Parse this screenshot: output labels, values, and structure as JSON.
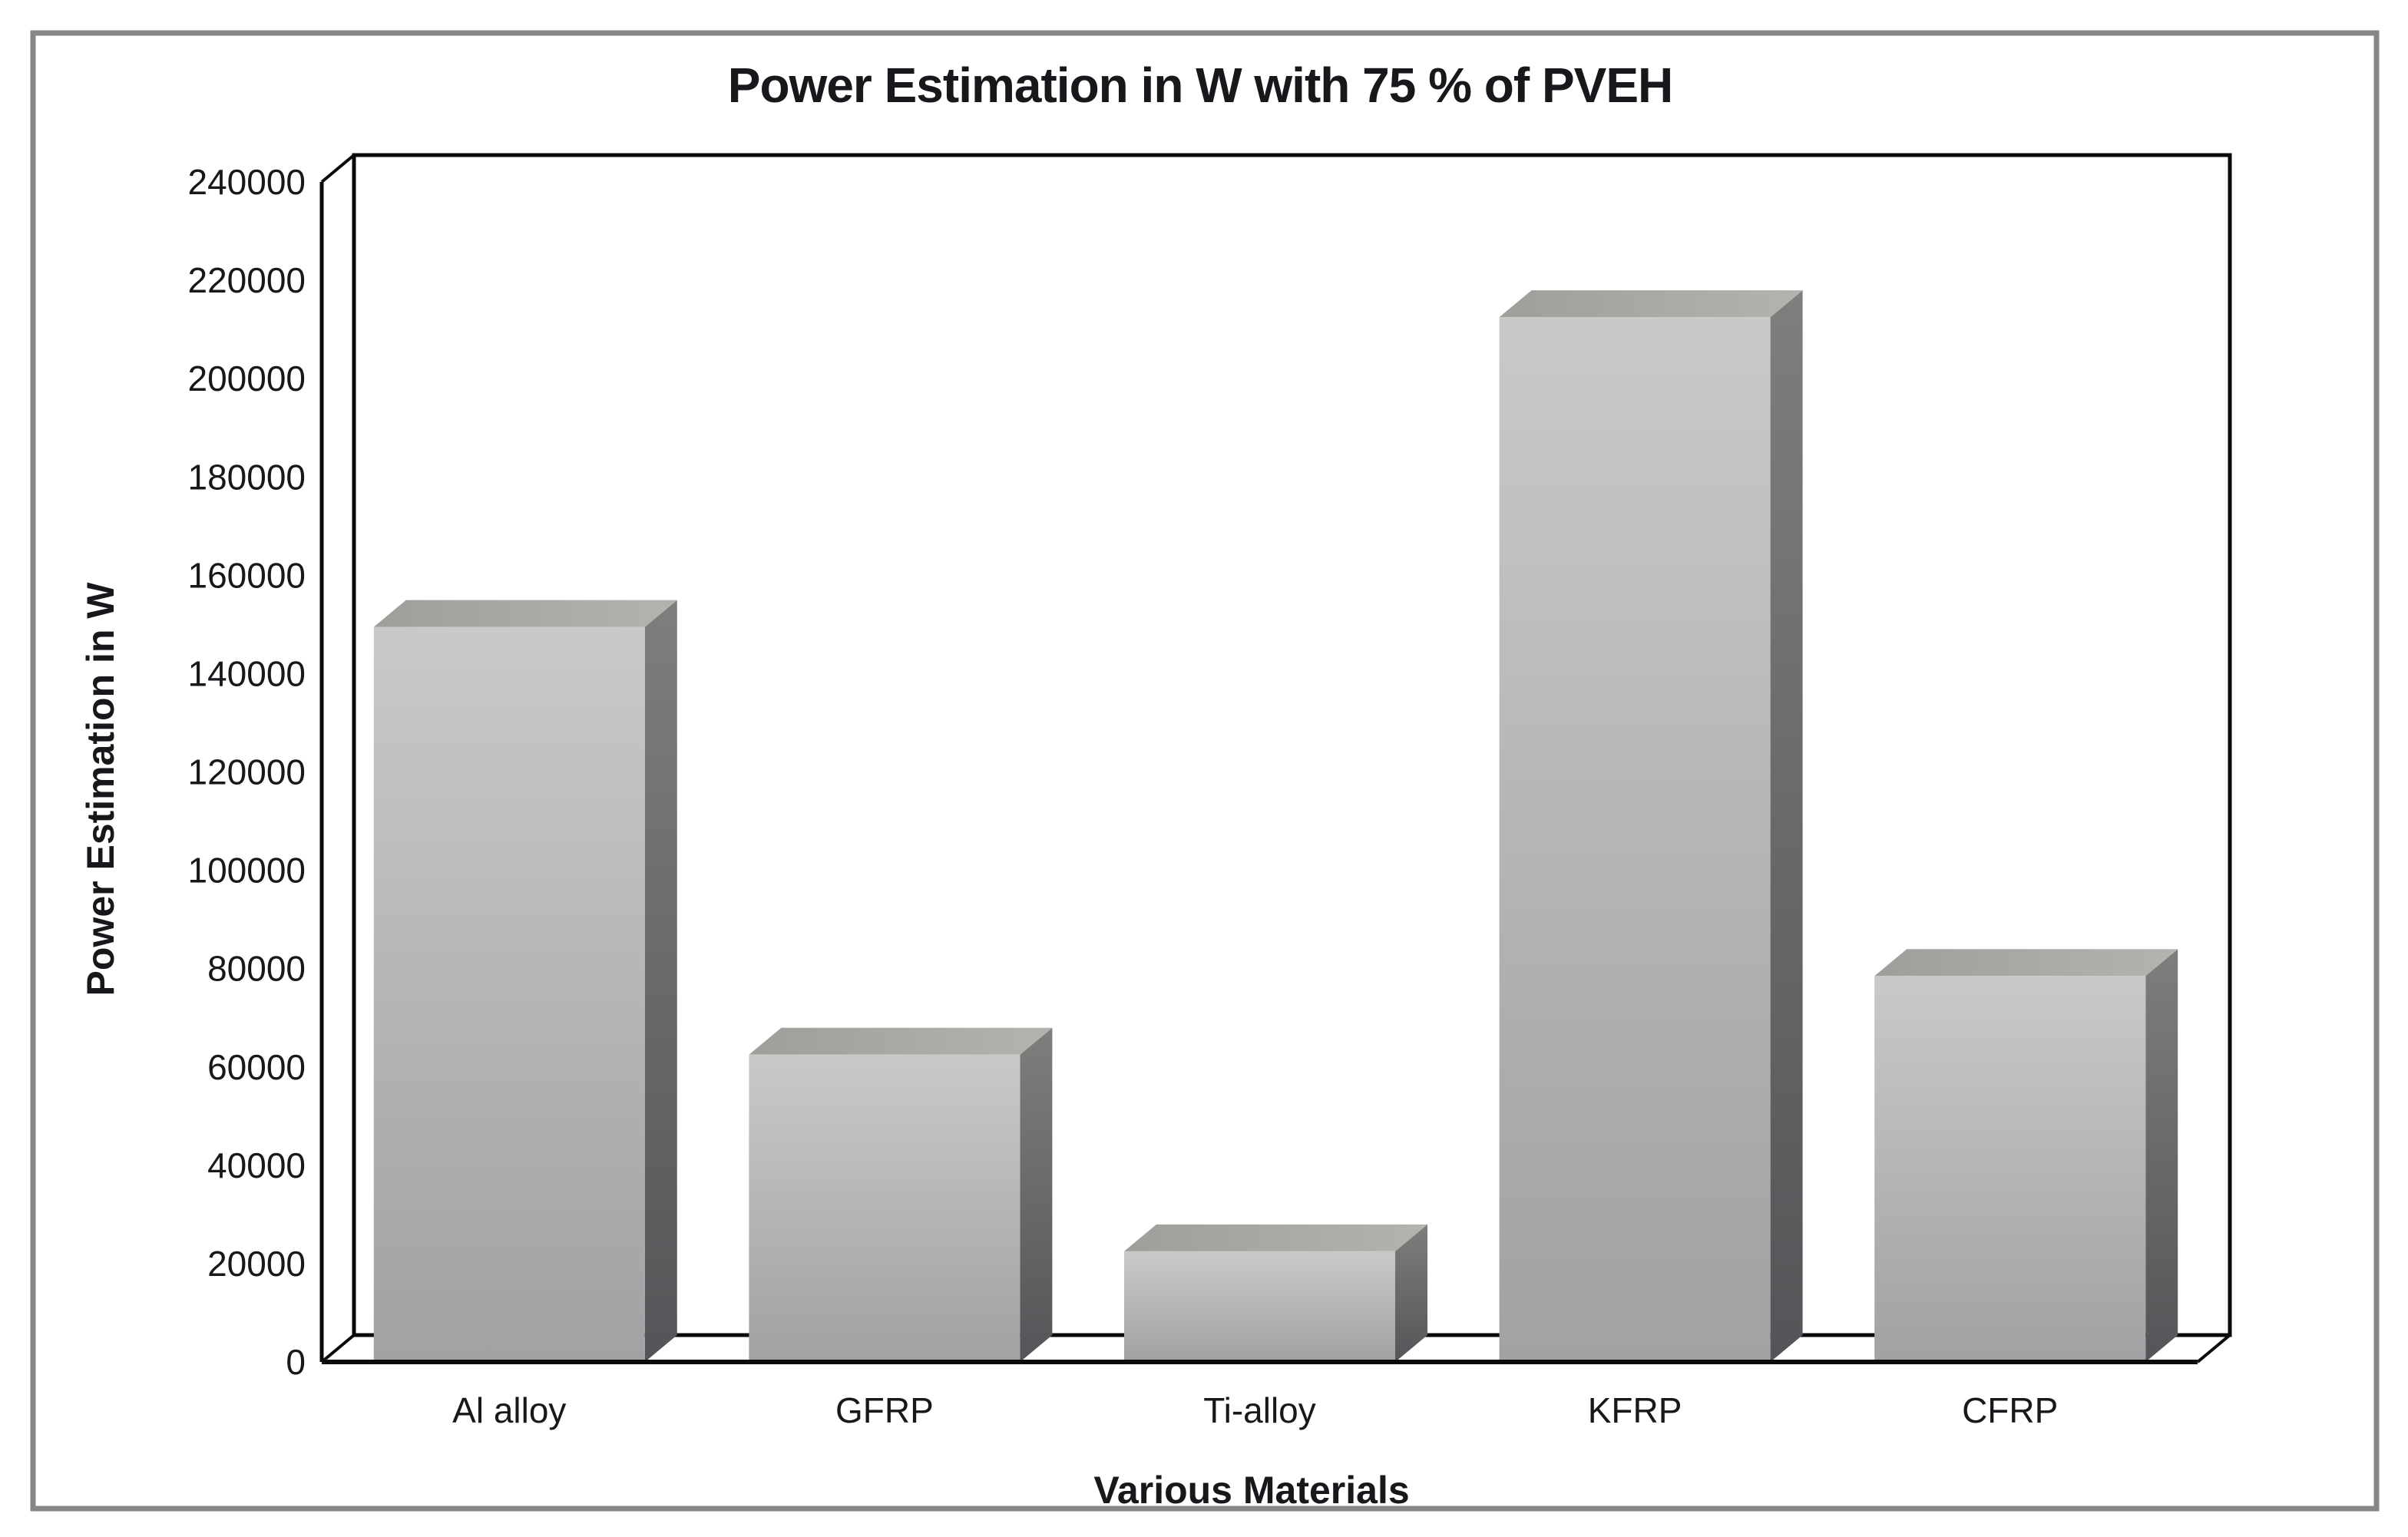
{
  "chart_data": {
    "type": "bar",
    "title": "Power Estimation in W with 75 % of PVEH",
    "xlabel": "Various Materials",
    "ylabel": "Power Estimation in W",
    "categories": [
      "Al alloy",
      "GFRP",
      "Ti-alloy",
      "KFRP",
      "CFRP"
    ],
    "values": [
      149500,
      62500,
      22500,
      212500,
      78500
    ],
    "ylim": [
      0,
      240000
    ],
    "ytick_step": 20000,
    "ytick_labels": [
      "0",
      "20000",
      "40000",
      "60000",
      "80000",
      "100000",
      "120000",
      "140000",
      "160000",
      "180000",
      "200000",
      "220000",
      "240000"
    ],
    "grid": false,
    "legend": "none",
    "effect": "3d-column"
  },
  "colors": {
    "background": "#ffffff",
    "figure_border": "#868686",
    "axis_line": "#0a0a0a",
    "text": "#17171c",
    "wall_fill": "#ffffff",
    "bar_front_top": "#cac9c7",
    "bar_front_bottom": "#a2a1a3",
    "bar_side_top": "#7f7e7c",
    "bar_side_bottom": "#555458",
    "bar_top_left": "#9f9e9a",
    "bar_top_right": "#b4b3af"
  }
}
